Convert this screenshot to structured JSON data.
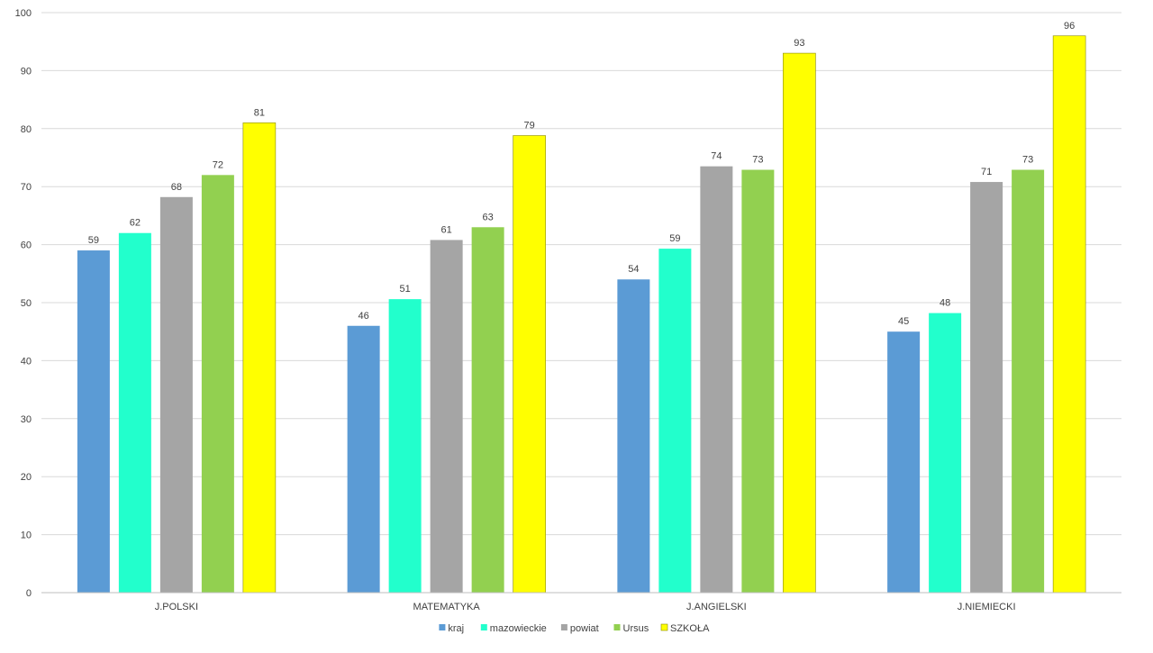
{
  "chart_data": {
    "type": "bar",
    "categories": [
      "J.POLSKI",
      "MATEMATYKA",
      "J.ANGIELSKI",
      "J.NIEMIECKI"
    ],
    "series": [
      {
        "name": "kraj",
        "color": "#5B9BD5",
        "values": [
          59,
          46,
          54,
          45
        ],
        "labels": [
          "59",
          "46",
          "54",
          "45"
        ]
      },
      {
        "name": "mazowieckie",
        "color": "#22FFCC",
        "values": [
          62,
          50.6,
          59.3,
          48.2
        ],
        "labels": [
          "62",
          "51",
          "59",
          "48"
        ]
      },
      {
        "name": "powiat",
        "color": "#A5A5A5",
        "values": [
          68.2,
          60.8,
          73.5,
          70.8
        ],
        "labels": [
          "68",
          "61",
          "74",
          "71"
        ]
      },
      {
        "name": "Ursus",
        "color": "#92D050",
        "values": [
          72,
          63,
          72.9,
          72.9
        ],
        "labels": [
          "72",
          "63",
          "73",
          "73"
        ]
      },
      {
        "name": "SZKOŁA",
        "color": "#FFFF00",
        "values": [
          81,
          78.8,
          93,
          96
        ],
        "labels": [
          "81",
          "79",
          "93",
          "96"
        ]
      }
    ],
    "ylim": [
      0,
      100
    ],
    "yticks": [
      "0",
      "10",
      "20",
      "30",
      "40",
      "50",
      "60",
      "70",
      "80",
      "90",
      "100"
    ],
    "grid": true,
    "legend_position": "bottom"
  }
}
